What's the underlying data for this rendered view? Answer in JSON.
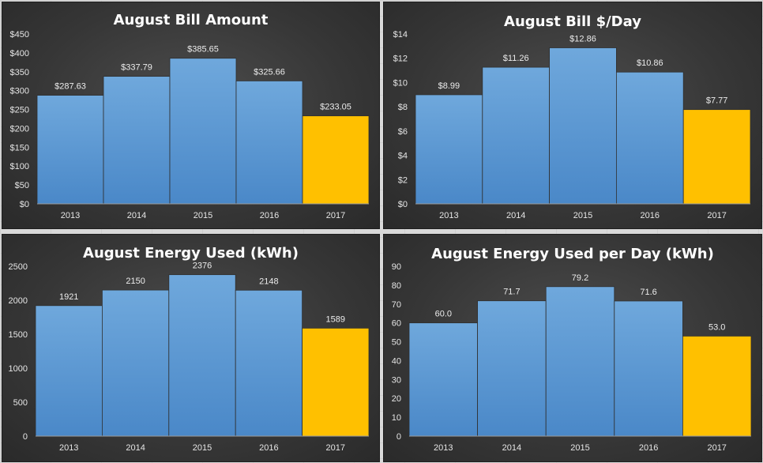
{
  "colors": {
    "bar": "#5b9bd5",
    "highlight": "#ffc000",
    "panel_bg": "#3a3a3a",
    "text": "#e6e6e6"
  },
  "chart_data": [
    {
      "type": "bar",
      "title": "August Bill Amount",
      "categories": [
        "2013",
        "2014",
        "2015",
        "2016",
        "2017"
      ],
      "values": [
        287.63,
        337.79,
        385.65,
        325.66,
        233.05
      ],
      "data_labels": [
        "$287.63",
        "$337.79",
        "$385.65",
        "$325.66",
        "$233.05"
      ],
      "yticks": [
        "$0",
        "$50",
        "$100",
        "$150",
        "$200",
        "$250",
        "$300",
        "$350",
        "$400",
        "$450"
      ],
      "ylim": [
        0,
        450
      ],
      "highlight_index": 4,
      "xlabel": "",
      "ylabel": ""
    },
    {
      "type": "bar",
      "title": "August Bill $/Day",
      "categories": [
        "2013",
        "2014",
        "2015",
        "2016",
        "2017"
      ],
      "values": [
        8.99,
        11.26,
        12.86,
        10.86,
        7.77
      ],
      "data_labels": [
        "$8.99",
        "$11.26",
        "$12.86",
        "$10.86",
        "$7.77"
      ],
      "yticks": [
        "$0",
        "$2",
        "$4",
        "$6",
        "$8",
        "$10",
        "$12",
        "$14"
      ],
      "ylim": [
        0,
        14
      ],
      "highlight_index": 4,
      "xlabel": "",
      "ylabel": ""
    },
    {
      "type": "bar",
      "title": "August Energy Used (kWh)",
      "categories": [
        "2013",
        "2014",
        "2015",
        "2016",
        "2017"
      ],
      "values": [
        1921,
        2150,
        2376,
        2148,
        1589
      ],
      "data_labels": [
        "1921",
        "2150",
        "2376",
        "2148",
        "1589"
      ],
      "yticks": [
        "0",
        "500",
        "1000",
        "1500",
        "2000",
        "2500"
      ],
      "ylim": [
        0,
        2500
      ],
      "highlight_index": 4,
      "xlabel": "",
      "ylabel": ""
    },
    {
      "type": "bar",
      "title": "August Energy Used per Day (kWh)",
      "categories": [
        "2013",
        "2014",
        "2015",
        "2016",
        "2017"
      ],
      "values": [
        60.0,
        71.7,
        79.2,
        71.6,
        53.0
      ],
      "data_labels": [
        "60.0",
        "71.7",
        "79.2",
        "71.6",
        "53.0"
      ],
      "yticks": [
        "0",
        "10",
        "20",
        "30",
        "40",
        "50",
        "60",
        "70",
        "80",
        "90"
      ],
      "ylim": [
        0,
        90
      ],
      "highlight_index": 4,
      "xlabel": "",
      "ylabel": ""
    }
  ]
}
